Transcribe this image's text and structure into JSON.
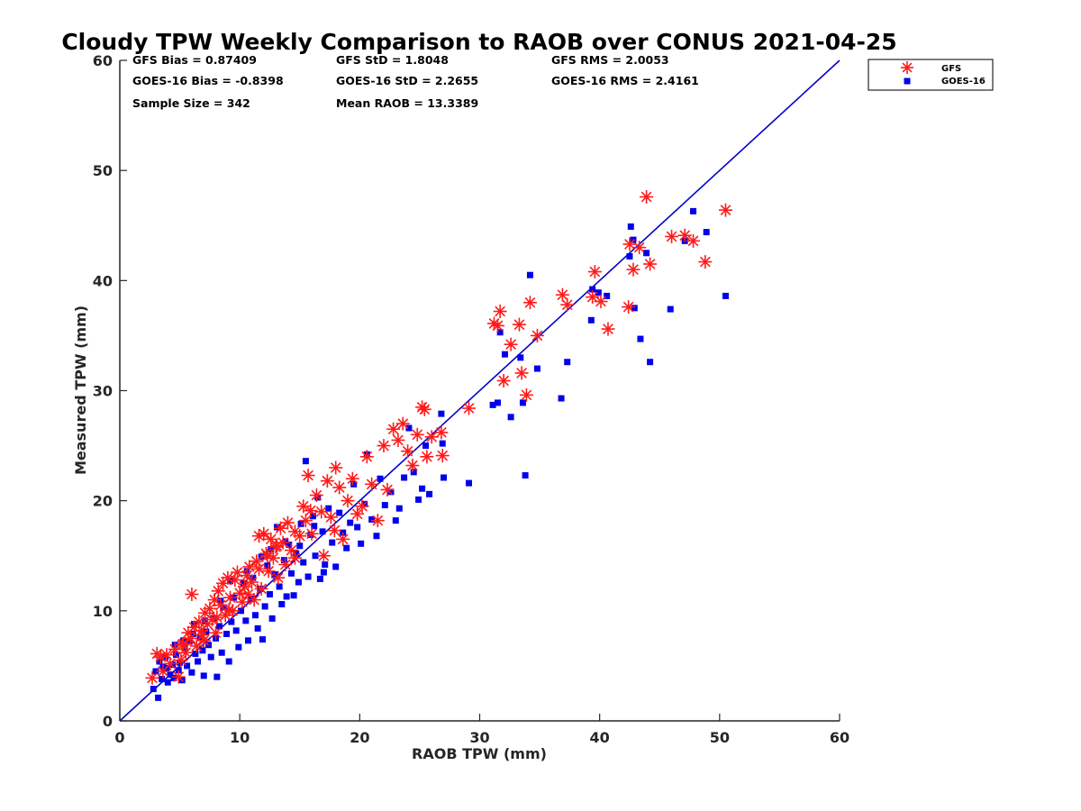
{
  "chart_data": {
    "type": "scatter",
    "title": "Cloudy TPW Weekly Comparison to RAOB over CONUS 2021-04-25",
    "xlabel": "RAOB TPW (mm)",
    "ylabel": "Measured TPW (mm)",
    "xlim": [
      0,
      60
    ],
    "ylim": [
      0,
      60
    ],
    "xticks": [
      0,
      10,
      20,
      30,
      40,
      50,
      60
    ],
    "yticks": [
      0,
      10,
      20,
      30,
      40,
      50,
      60
    ],
    "grid": false,
    "legend_position": "top-right outside",
    "stats": [
      "GFS Bias = 0.87409",
      "GFS StD = 1.8048",
      "GFS RMS = 2.0053",
      "GOES-16 Bias = -0.8398",
      "GOES-16 StD = 2.2655",
      "GOES-16 RMS = 2.4161",
      "Sample Size = 342",
      "Mean RAOB = 13.3389"
    ],
    "reference_line": {
      "x": [
        0,
        60
      ],
      "y": [
        0,
        60
      ],
      "color": "#0000cc"
    },
    "series": [
      {
        "name": "GFS",
        "marker": "asterisk",
        "color": "#ff1a1a",
        "points": [
          [
            2.7,
            3.9
          ],
          [
            3.1,
            6.1
          ],
          [
            3.4,
            5.8
          ],
          [
            3.6,
            4.5
          ],
          [
            3.9,
            6.0
          ],
          [
            4.2,
            5.2
          ],
          [
            4.6,
            6.5
          ],
          [
            4.9,
            4.0
          ],
          [
            5.1,
            5.5
          ],
          [
            5.3,
            7.0
          ],
          [
            5.5,
            6.2
          ],
          [
            5.7,
            8.0
          ],
          [
            5.9,
            7.5
          ],
          [
            6.0,
            11.5
          ],
          [
            6.2,
            8.5
          ],
          [
            6.4,
            6.8
          ],
          [
            6.6,
            9.0
          ],
          [
            6.8,
            8.2
          ],
          [
            7.0,
            7.3
          ],
          [
            7.1,
            9.8
          ],
          [
            7.3,
            8.8
          ],
          [
            7.5,
            10.2
          ],
          [
            7.7,
            9.2
          ],
          [
            7.9,
            11.0
          ],
          [
            8.0,
            8.0
          ],
          [
            8.2,
            11.8
          ],
          [
            8.4,
            10.5
          ],
          [
            8.6,
            12.5
          ],
          [
            8.8,
            9.6
          ],
          [
            9.0,
            13.0
          ],
          [
            9.2,
            11.2
          ],
          [
            9.4,
            10.0
          ],
          [
            9.6,
            12.8
          ],
          [
            9.8,
            13.5
          ],
          [
            10.0,
            11.6
          ],
          [
            10.2,
            10.8
          ],
          [
            10.4,
            12.2
          ],
          [
            10.6,
            13.2
          ],
          [
            10.8,
            14.0
          ],
          [
            11.0,
            12.6
          ],
          [
            11.2,
            11.0
          ],
          [
            11.4,
            14.5
          ],
          [
            11.6,
            13.8
          ],
          [
            11.8,
            12.0
          ],
          [
            12.0,
            17.0
          ],
          [
            12.2,
            15.2
          ],
          [
            12.4,
            13.6
          ],
          [
            12.6,
            16.5
          ],
          [
            12.8,
            14.8
          ],
          [
            13.0,
            15.8
          ],
          [
            13.2,
            13.0
          ],
          [
            13.4,
            17.5
          ],
          [
            13.6,
            16.2
          ],
          [
            13.8,
            14.2
          ],
          [
            14.0,
            18.0
          ],
          [
            14.3,
            15.5
          ],
          [
            14.6,
            17.2
          ],
          [
            15.0,
            16.8
          ],
          [
            15.3,
            19.5
          ],
          [
            15.5,
            18.2
          ],
          [
            15.7,
            22.3
          ],
          [
            16.0,
            17.0
          ],
          [
            16.4,
            20.5
          ],
          [
            16.8,
            19.0
          ],
          [
            17.0,
            15.0
          ],
          [
            17.3,
            21.8
          ],
          [
            17.6,
            18.5
          ],
          [
            18.0,
            23.0
          ],
          [
            18.3,
            21.2
          ],
          [
            18.6,
            16.5
          ],
          [
            19.0,
            20.0
          ],
          [
            19.4,
            22.0
          ],
          [
            19.8,
            18.8
          ],
          [
            20.2,
            19.5
          ],
          [
            20.6,
            24.0
          ],
          [
            21.0,
            21.5
          ],
          [
            21.5,
            18.2
          ],
          [
            22.0,
            25.0
          ],
          [
            22.3,
            21.0
          ],
          [
            22.8,
            26.5
          ],
          [
            23.2,
            25.5
          ],
          [
            23.6,
            27.0
          ],
          [
            24.0,
            24.5
          ],
          [
            24.4,
            23.2
          ],
          [
            24.8,
            26.0
          ],
          [
            25.2,
            28.5
          ],
          [
            25.4,
            28.3
          ],
          [
            25.6,
            24.0
          ],
          [
            26.0,
            25.8
          ],
          [
            26.8,
            26.2
          ],
          [
            26.9,
            24.1
          ],
          [
            29.1,
            28.4
          ],
          [
            31.2,
            36.1
          ],
          [
            31.5,
            35.9
          ],
          [
            31.7,
            37.2
          ],
          [
            32.0,
            30.9
          ],
          [
            32.6,
            34.2
          ],
          [
            33.3,
            36.0
          ],
          [
            33.5,
            31.6
          ],
          [
            33.9,
            29.6
          ],
          [
            34.2,
            38.0
          ],
          [
            34.8,
            35.0
          ],
          [
            36.9,
            38.7
          ],
          [
            37.3,
            37.8
          ],
          [
            39.4,
            38.5
          ],
          [
            39.6,
            40.8
          ],
          [
            40.1,
            38.1
          ],
          [
            40.7,
            35.6
          ],
          [
            42.4,
            37.6
          ],
          [
            42.5,
            43.3
          ],
          [
            42.8,
            41.0
          ],
          [
            43.3,
            43.0
          ],
          [
            43.9,
            47.6
          ],
          [
            44.2,
            41.5
          ],
          [
            46.0,
            44.0
          ],
          [
            47.1,
            44.1
          ],
          [
            47.8,
            43.6
          ],
          [
            48.8,
            41.7
          ],
          [
            50.5,
            46.4
          ],
          [
            11.6,
            16.8
          ],
          [
            12.3,
            15.0
          ],
          [
            13.1,
            15.9
          ],
          [
            14.6,
            14.8
          ],
          [
            15.9,
            19.1
          ],
          [
            17.9,
            17.3
          ],
          [
            10.7,
            11.5
          ],
          [
            9.1,
            10.1
          ],
          [
            8.1,
            9.4
          ],
          [
            6.9,
            7.8
          ],
          [
            5.2,
            6.9
          ]
        ]
      },
      {
        "name": "GOES-16",
        "marker": "square",
        "color": "#0000ee",
        "points": [
          [
            2.8,
            2.9
          ],
          [
            3.0,
            4.5
          ],
          [
            3.2,
            2.1
          ],
          [
            3.3,
            5.4
          ],
          [
            3.5,
            3.8
          ],
          [
            3.6,
            4.9
          ],
          [
            3.8,
            5.8
          ],
          [
            4.0,
            3.5
          ],
          [
            4.2,
            4.2
          ],
          [
            4.4,
            5.1
          ],
          [
            4.5,
            3.9
          ],
          [
            4.7,
            6.0
          ],
          [
            4.9,
            4.6
          ],
          [
            5.0,
            5.3
          ],
          [
            5.2,
            3.7
          ],
          [
            5.4,
            6.6
          ],
          [
            5.6,
            5.0
          ],
          [
            5.8,
            7.2
          ],
          [
            6.0,
            4.4
          ],
          [
            6.2,
            8.8
          ],
          [
            6.3,
            6.1
          ],
          [
            6.5,
            5.4
          ],
          [
            6.7,
            7.6
          ],
          [
            6.9,
            6.4
          ],
          [
            7.0,
            4.1
          ],
          [
            7.2,
            8.1
          ],
          [
            7.4,
            6.9
          ],
          [
            7.6,
            5.8
          ],
          [
            7.8,
            9.3
          ],
          [
            8.0,
            7.5
          ],
          [
            8.1,
            4.0
          ],
          [
            8.3,
            8.6
          ],
          [
            8.5,
            6.2
          ],
          [
            8.7,
            10.3
          ],
          [
            8.9,
            7.9
          ],
          [
            9.1,
            5.4
          ],
          [
            9.3,
            9.0
          ],
          [
            9.5,
            11.2
          ],
          [
            9.7,
            8.2
          ],
          [
            9.9,
            6.7
          ],
          [
            10.1,
            10.0
          ],
          [
            10.3,
            12.5
          ],
          [
            10.5,
            9.1
          ],
          [
            10.7,
            7.3
          ],
          [
            10.9,
            11.1
          ],
          [
            11.1,
            13.0
          ],
          [
            11.3,
            9.6
          ],
          [
            11.5,
            8.4
          ],
          [
            11.7,
            12.0
          ],
          [
            11.9,
            7.4
          ],
          [
            12.1,
            10.4
          ],
          [
            12.3,
            14.1
          ],
          [
            12.5,
            11.5
          ],
          [
            12.7,
            9.3
          ],
          [
            12.9,
            13.3
          ],
          [
            13.1,
            17.6
          ],
          [
            13.3,
            12.2
          ],
          [
            13.5,
            10.6
          ],
          [
            13.7,
            14.6
          ],
          [
            13.9,
            11.3
          ],
          [
            14.1,
            16.0
          ],
          [
            14.3,
            13.4
          ],
          [
            14.5,
            11.4
          ],
          [
            14.7,
            15.2
          ],
          [
            14.9,
            12.6
          ],
          [
            15.1,
            17.9
          ],
          [
            15.3,
            14.4
          ],
          [
            15.5,
            23.6
          ],
          [
            15.7,
            13.1
          ],
          [
            15.9,
            16.9
          ],
          [
            16.1,
            18.6
          ],
          [
            16.3,
            15.0
          ],
          [
            16.5,
            20.3
          ],
          [
            16.7,
            12.9
          ],
          [
            16.9,
            17.2
          ],
          [
            17.1,
            14.2
          ],
          [
            17.4,
            19.3
          ],
          [
            17.7,
            16.2
          ],
          [
            18.0,
            14.0
          ],
          [
            18.3,
            18.9
          ],
          [
            18.6,
            17.1
          ],
          [
            18.9,
            15.7
          ],
          [
            19.2,
            18.0
          ],
          [
            19.5,
            21.5
          ],
          [
            19.8,
            17.6
          ],
          [
            20.1,
            16.1
          ],
          [
            20.4,
            19.7
          ],
          [
            20.6,
            24.2
          ],
          [
            21.0,
            18.3
          ],
          [
            21.4,
            16.8
          ],
          [
            21.7,
            22.0
          ],
          [
            22.1,
            19.6
          ],
          [
            22.6,
            20.8
          ],
          [
            23.0,
            18.2
          ],
          [
            23.3,
            19.3
          ],
          [
            23.7,
            22.1
          ],
          [
            24.1,
            26.6
          ],
          [
            24.5,
            22.6
          ],
          [
            24.9,
            20.1
          ],
          [
            25.2,
            21.1
          ],
          [
            25.5,
            25.0
          ],
          [
            25.8,
            20.6
          ],
          [
            26.8,
            27.9
          ],
          [
            26.9,
            25.2
          ],
          [
            27.0,
            22.1
          ],
          [
            29.1,
            21.6
          ],
          [
            31.1,
            28.7
          ],
          [
            31.5,
            28.9
          ],
          [
            31.7,
            35.3
          ],
          [
            32.1,
            33.3
          ],
          [
            32.6,
            27.6
          ],
          [
            33.4,
            33.0
          ],
          [
            33.6,
            28.9
          ],
          [
            33.8,
            22.3
          ],
          [
            34.2,
            40.5
          ],
          [
            34.8,
            32.0
          ],
          [
            36.8,
            29.3
          ],
          [
            37.3,
            32.6
          ],
          [
            39.3,
            36.4
          ],
          [
            39.4,
            39.2
          ],
          [
            39.9,
            38.9
          ],
          [
            40.6,
            38.6
          ],
          [
            42.5,
            42.2
          ],
          [
            42.6,
            44.9
          ],
          [
            42.8,
            43.7
          ],
          [
            42.9,
            37.5
          ],
          [
            43.4,
            34.7
          ],
          [
            43.9,
            42.5
          ],
          [
            44.2,
            32.6
          ],
          [
            45.9,
            37.4
          ],
          [
            47.1,
            43.6
          ],
          [
            47.8,
            46.3
          ],
          [
            48.9,
            44.4
          ],
          [
            50.5,
            38.6
          ],
          [
            9.2,
            12.7
          ],
          [
            10.6,
            13.6
          ],
          [
            11.8,
            14.9
          ],
          [
            12.6,
            15.6
          ],
          [
            13.8,
            16.3
          ],
          [
            15.0,
            15.9
          ],
          [
            16.2,
            17.7
          ],
          [
            17.0,
            13.5
          ],
          [
            8.4,
            10.9
          ],
          [
            7.1,
            9.1
          ],
          [
            6.1,
            7.9
          ],
          [
            5.3,
            7.3
          ],
          [
            4.6,
            6.9
          ],
          [
            3.9,
            4.8
          ]
        ]
      }
    ]
  }
}
